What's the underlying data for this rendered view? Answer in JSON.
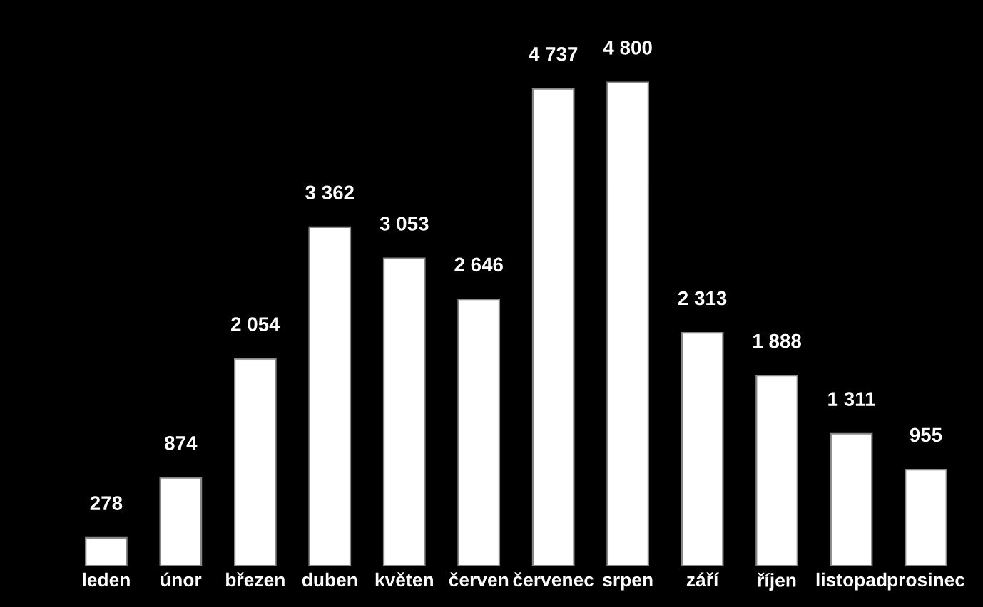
{
  "chart_data": {
    "type": "bar",
    "categories": [
      "leden",
      "únor",
      "březen",
      "duben",
      "květen",
      "červen",
      "červenec",
      "srpen",
      "září",
      "říjen",
      "listopad",
      "prosinec"
    ],
    "values": [
      278,
      874,
      2054,
      3362,
      3053,
      2646,
      4737,
      4800,
      2313,
      1888,
      1311,
      955
    ],
    "value_labels": [
      "278",
      "874",
      "2 054",
      "3 362",
      "3 053",
      "2 646",
      "4 737",
      "4 800",
      "2 313",
      "1 888",
      "1 311",
      "955"
    ],
    "color": "#ffffff",
    "grid": false,
    "legend": false
  }
}
